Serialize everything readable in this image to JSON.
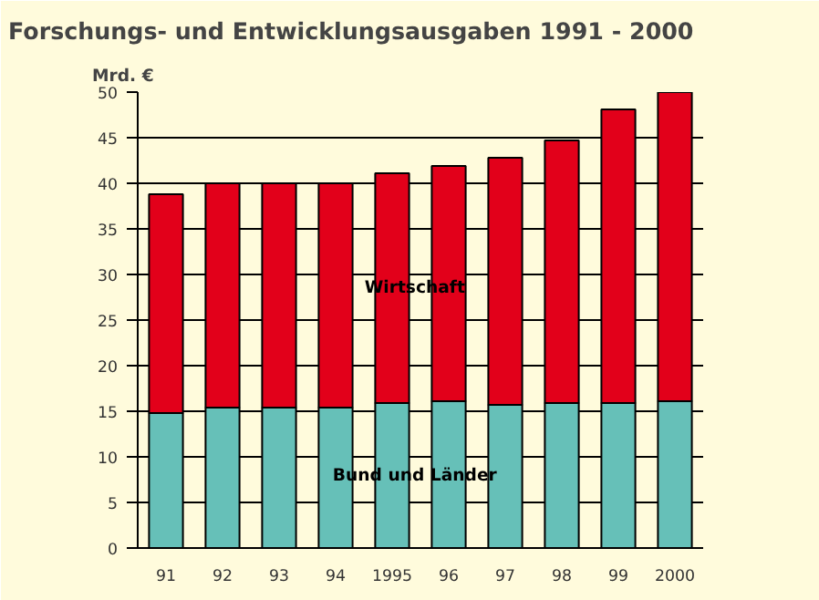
{
  "chart_data": {
    "type": "bar",
    "title": "Forschungs- und Entwicklungsausgaben 1991 - 2000",
    "ylabel": "Mrd. €",
    "categories": [
      "91",
      "92",
      "93",
      "94",
      "1995",
      "96",
      "97",
      "98",
      "99",
      "2000"
    ],
    "stacked": true,
    "series": [
      {
        "name": "Bund und Länder",
        "color": "#66c0b8",
        "values": [
          14.8,
          15.4,
          15.4,
          15.4,
          15.9,
          16.1,
          15.7,
          15.9,
          15.9,
          16.1
        ]
      },
      {
        "name": "Wirtschaft",
        "color": "#e2001a",
        "values": [
          24.0,
          24.6,
          24.6,
          24.6,
          25.2,
          25.8,
          27.1,
          28.8,
          32.2,
          33.9
        ]
      }
    ],
    "ylim": [
      0,
      50
    ],
    "yticks": [
      0,
      5,
      10,
      15,
      20,
      25,
      30,
      35,
      40,
      45,
      50
    ],
    "grid": "y",
    "legend": false
  }
}
